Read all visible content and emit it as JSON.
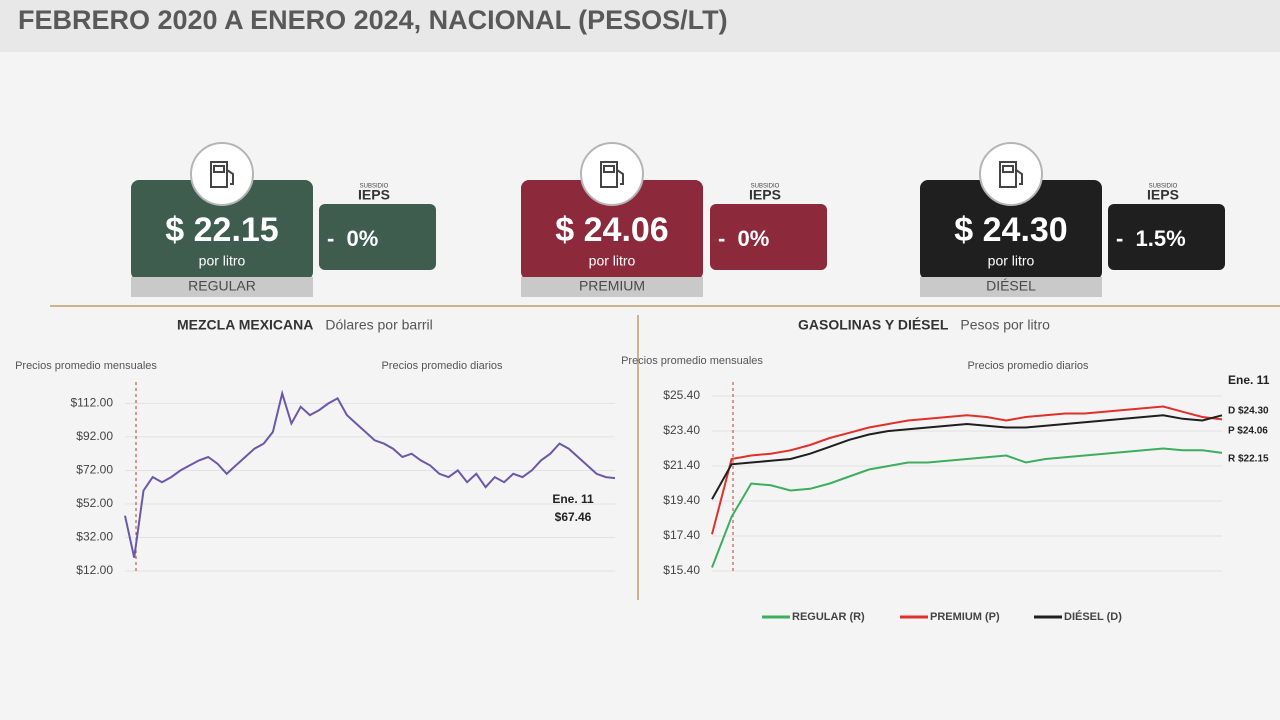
{
  "header": {
    "title": "FEBRERO 2020 A ENERO 2024, NACIONAL (PESOS/LT)"
  },
  "cards": [
    {
      "price": "$ 22.15",
      "unit": "por litro",
      "name": "REGULAR",
      "subsidy_label": "SUBSIDIO",
      "tax": "IEPS",
      "subsidy": "-  0%",
      "color": "#3e5d4f"
    },
    {
      "price": "$ 24.06",
      "unit": "por litro",
      "name": "PREMIUM",
      "subsidy_label": "SUBSIDIO",
      "tax": "IEPS",
      "subsidy": "-  0%",
      "color": "#8c2a3c"
    },
    {
      "price": "$ 24.30",
      "unit": "por litro",
      "name": "DIÉSEL",
      "subsidy_label": "SUBSIDIO",
      "tax": "IEPS",
      "subsidy": "-  1.5%",
      "color": "#1f1f1f"
    }
  ],
  "chart_data": [
    {
      "type": "line",
      "title": "MEZCLA MEXICANA",
      "subtitle": "Dólares por barril",
      "annotations": [
        "Precios promedio mensuales",
        "Precios promedio diarios",
        "Ene. 11",
        "$67.46"
      ],
      "color": "#6a58a8",
      "values": [
        45,
        20,
        60,
        68,
        65,
        68,
        72,
        75,
        78,
        80,
        76,
        70,
        75,
        80,
        85,
        88,
        95,
        118,
        100,
        110,
        105,
        108,
        112,
        115,
        105,
        100,
        95,
        90,
        88,
        85,
        80,
        82,
        78,
        75,
        70,
        68,
        72,
        65,
        70,
        62,
        68,
        65,
        70,
        68,
        72,
        78,
        82,
        88,
        85,
        80,
        75,
        70,
        68,
        67.46
      ],
      "ylim": [
        12,
        120
      ],
      "yticks": [
        {
          "value": 12,
          "label": "$12.00"
        },
        {
          "value": 32,
          "label": "$32.00"
        },
        {
          "value": 52,
          "label": "$52.00"
        },
        {
          "value": 72,
          "label": "$72.00"
        },
        {
          "value": 92,
          "label": "$92.00"
        },
        {
          "value": 112,
          "label": "$112.00"
        }
      ],
      "grid": true
    },
    {
      "type": "line",
      "title": "GASOLINAS Y DIÉSEL",
      "subtitle": "Pesos por litro",
      "annotations": [
        "Precios promedio mensuales",
        "Precios promedio diarios",
        "Ene. 11",
        "D $24.30",
        "P $24.06",
        "R $22.15"
      ],
      "series": [
        {
          "name": "REGULAR (R)",
          "color": "#3cae5c",
          "values": [
            15.6,
            18.5,
            20.4,
            20.3,
            20.0,
            20.1,
            20.4,
            20.8,
            21.2,
            21.4,
            21.6,
            21.6,
            21.7,
            21.8,
            21.9,
            22.0,
            21.6,
            21.8,
            21.9,
            22.0,
            22.1,
            22.2,
            22.3,
            22.4,
            22.3,
            22.3,
            22.15
          ]
        },
        {
          "name": "PREMIUM (P)",
          "color": "#e0302a",
          "values": [
            17.5,
            21.8,
            22.0,
            22.1,
            22.3,
            22.6,
            23.0,
            23.3,
            23.6,
            23.8,
            24.0,
            24.1,
            24.2,
            24.3,
            24.2,
            24.0,
            24.2,
            24.3,
            24.4,
            24.4,
            24.5,
            24.6,
            24.7,
            24.8,
            24.5,
            24.2,
            24.06
          ]
        },
        {
          "name": "DIÉSEL (D)",
          "color": "#1f1f1f",
          "values": [
            19.5,
            21.5,
            21.6,
            21.7,
            21.8,
            22.1,
            22.5,
            22.9,
            23.2,
            23.4,
            23.5,
            23.6,
            23.7,
            23.8,
            23.7,
            23.6,
            23.6,
            23.7,
            23.8,
            23.9,
            24.0,
            24.1,
            24.2,
            24.3,
            24.1,
            24.0,
            24.3
          ]
        }
      ],
      "ylim": [
        15.4,
        25.4
      ],
      "yticks": [
        {
          "value": 15.4,
          "label": "$15.40"
        },
        {
          "value": 17.4,
          "label": "$17.40"
        },
        {
          "value": 19.4,
          "label": "$19.40"
        },
        {
          "value": 21.4,
          "label": "$21.40"
        },
        {
          "value": 23.4,
          "label": "$23.40"
        },
        {
          "value": 25.4,
          "label": "$25.40"
        }
      ],
      "grid": true
    }
  ]
}
